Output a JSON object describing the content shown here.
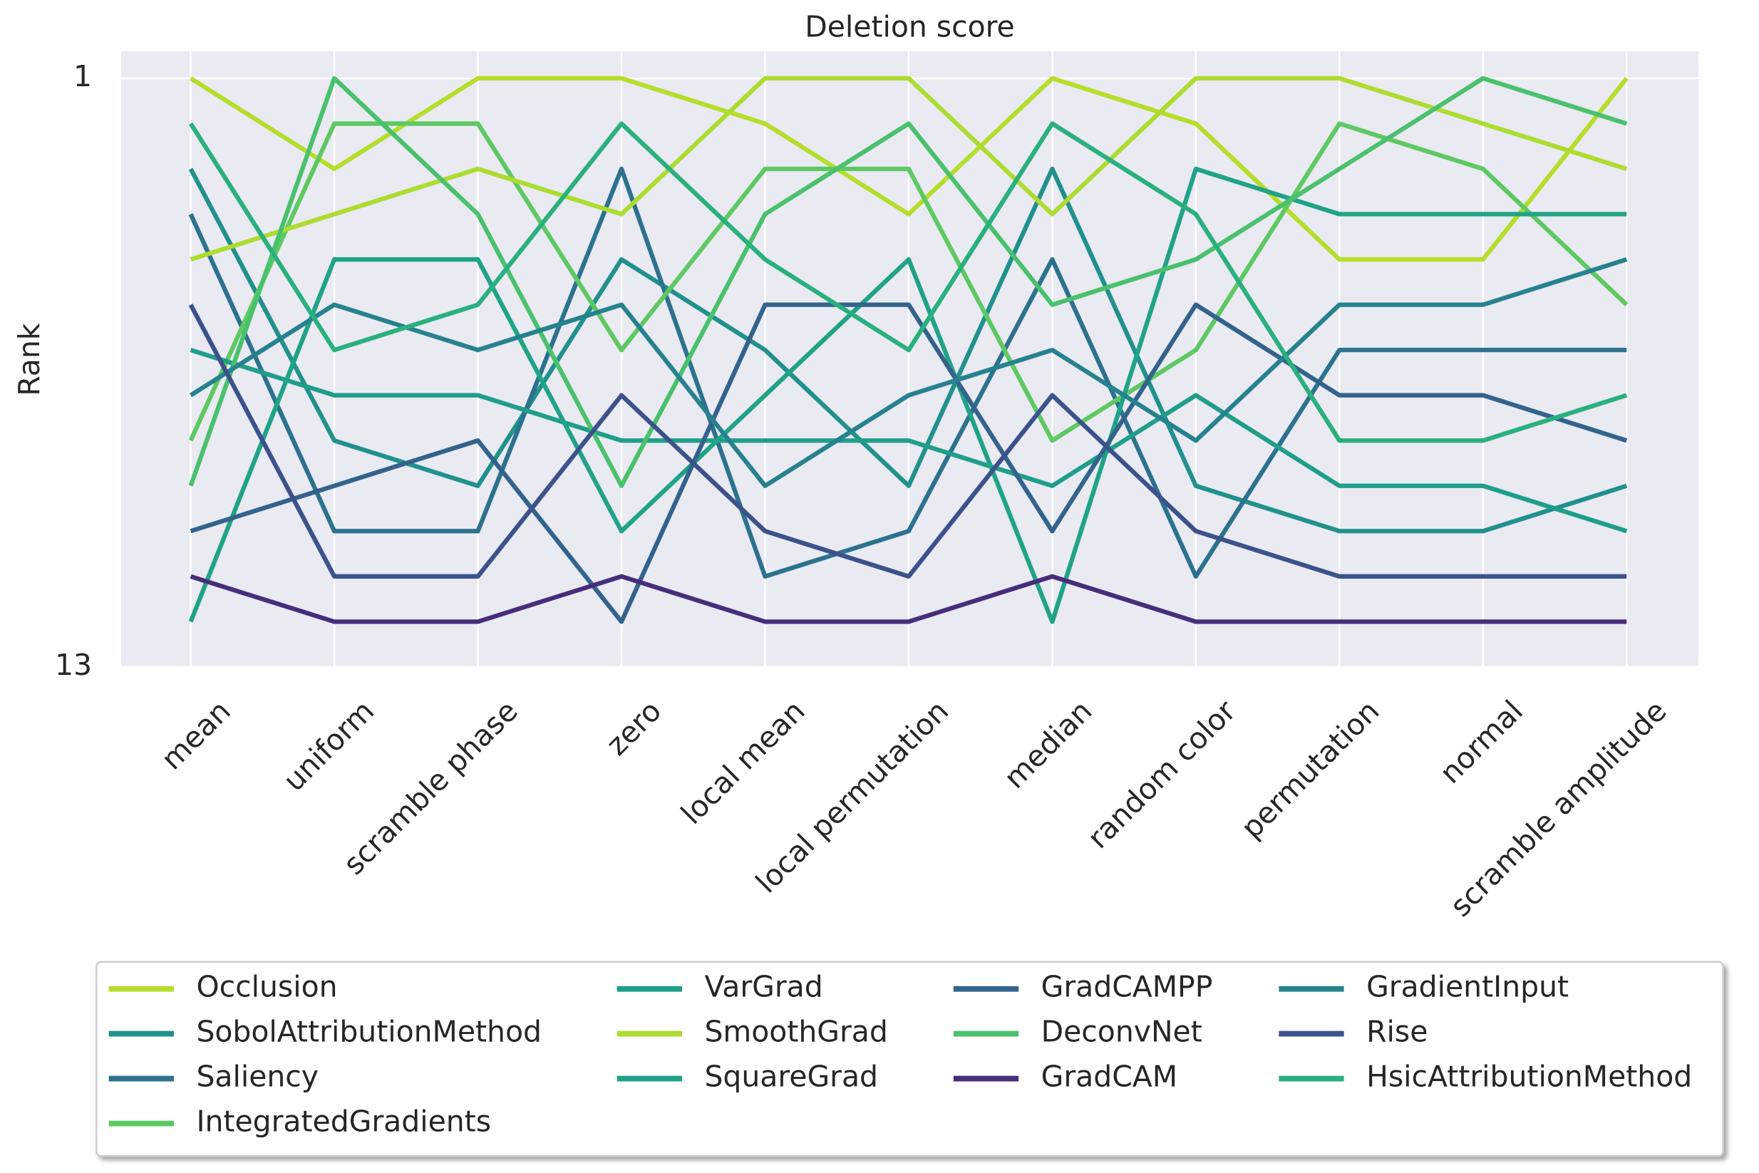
{
  "chart_data": {
    "type": "line",
    "title": "Deletion score",
    "y_label": "Rank",
    "categories": [
      "mean",
      "uniform",
      "scramble phase",
      "zero",
      "local mean",
      "local permutation",
      "median",
      "random color",
      "permutation",
      "normal",
      "scramble amplitude"
    ],
    "ylim": [
      -0.6,
      13
    ],
    "y_inverted": true,
    "yticks": [
      {
        "value": 0,
        "label": "1"
      },
      13
    ],
    "grid": true,
    "legend_columns": 4,
    "legend_position": "below",
    "series": [
      {
        "name": "Occlusion",
        "color": "#b5de2b",
        "values": [
          0,
          2,
          0,
          0,
          1,
          3,
          0,
          1,
          4,
          4,
          0
        ]
      },
      {
        "name": "SobolAttributionMethod",
        "color": "#21918c",
        "values": [
          2,
          8,
          9,
          4,
          6,
          9,
          2,
          9,
          10,
          10,
          9
        ]
      },
      {
        "name": "Saliency",
        "color": "#2c728e",
        "values": [
          3,
          10,
          10,
          2,
          11,
          10,
          4,
          11,
          6,
          6,
          6
        ]
      },
      {
        "name": "IntegratedGradients",
        "color": "#5ec962",
        "values": [
          8,
          1,
          1,
          6,
          2,
          2,
          8,
          6,
          1,
          2,
          5
        ]
      },
      {
        "name": "VarGrad",
        "color": "#1f9e89",
        "values": [
          6,
          7,
          7,
          8,
          8,
          8,
          9,
          7,
          9,
          9,
          10
        ]
      },
      {
        "name": "SmoothGrad",
        "color": "#addc30",
        "values": [
          4,
          3,
          2,
          3,
          0,
          0,
          3,
          0,
          0,
          1,
          2
        ]
      },
      {
        "name": "SquareGrad",
        "color": "#20a386",
        "values": [
          12,
          4,
          4,
          10,
          7,
          4,
          12,
          2,
          3,
          3,
          3
        ]
      },
      {
        "name": "GradCAMPP",
        "color": "#33638d",
        "values": [
          10,
          9,
          8,
          12,
          5,
          5,
          10,
          5,
          7,
          7,
          8
        ]
      },
      {
        "name": "DeconvNet",
        "color": "#4ac16d",
        "values": [
          9,
          0,
          3,
          9,
          3,
          1,
          5,
          4,
          2,
          0,
          1
        ]
      },
      {
        "name": "GradCAM",
        "color": "#472d7b",
        "values": [
          11,
          12,
          12,
          11,
          12,
          12,
          11,
          12,
          12,
          12,
          12
        ]
      },
      {
        "name": "GradientInput",
        "color": "#26828e",
        "values": [
          7,
          5,
          6,
          5,
          9,
          7,
          6,
          8,
          5,
          5,
          4
        ]
      },
      {
        "name": "Rise",
        "color": "#3b528b",
        "values": [
          5,
          11,
          11,
          7,
          10,
          11,
          7,
          10,
          11,
          11,
          11
        ]
      },
      {
        "name": "HsicAttributionMethod",
        "color": "#2ab07f",
        "values": [
          1,
          6,
          5,
          1,
          4,
          6,
          1,
          3,
          8,
          8,
          7
        ]
      }
    ]
  }
}
